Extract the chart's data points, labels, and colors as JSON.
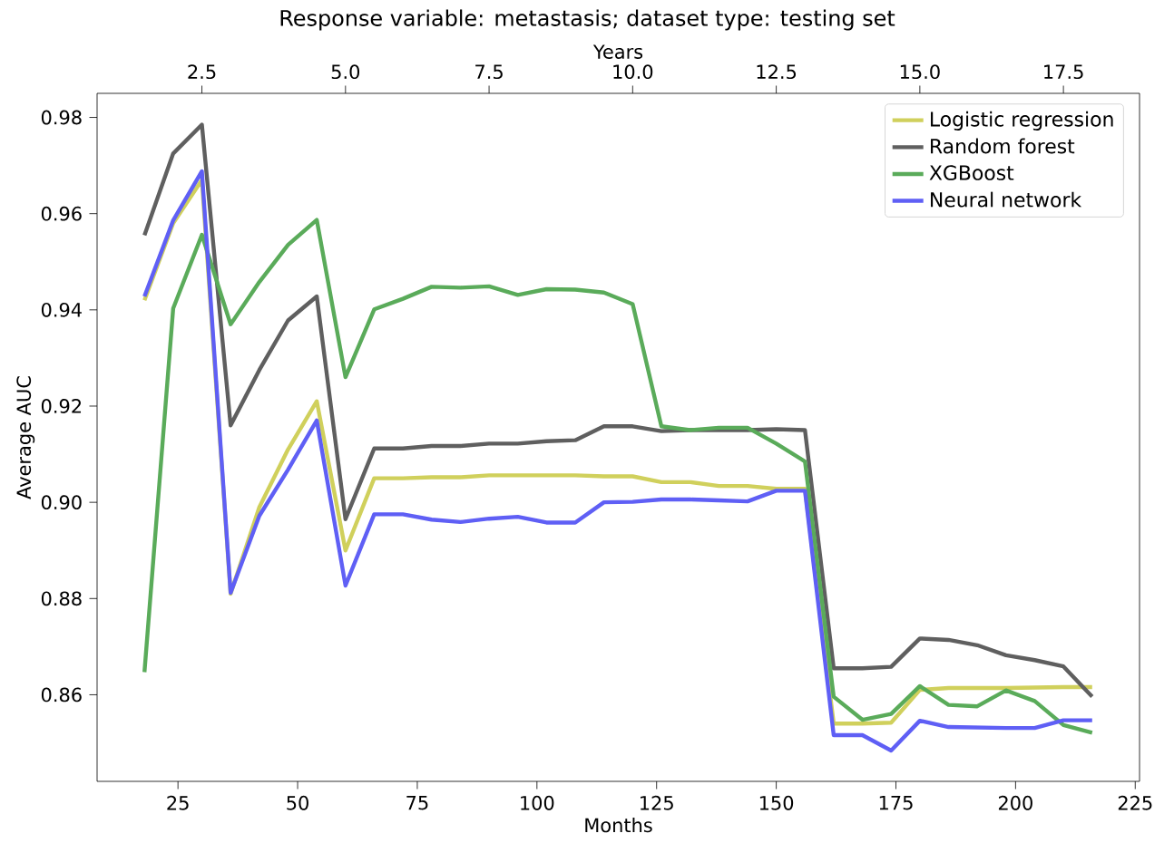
{
  "chart_data": {
    "type": "line",
    "title": "Response variable: metastasis; dataset type: testing set",
    "xlabel": "Months",
    "ylabel": "Average AUC",
    "x2label": "Years",
    "x": [
      18,
      24,
      30,
      36,
      42,
      48,
      54,
      60,
      66,
      72,
      78,
      84,
      90,
      96,
      102,
      108,
      114,
      120,
      126,
      132,
      138,
      144,
      150,
      156,
      162,
      168,
      174,
      180,
      186,
      192,
      198,
      204,
      210,
      216
    ],
    "xlim": [
      8.1,
      225.9
    ],
    "xticks": [
      25,
      50,
      75,
      100,
      125,
      150,
      175,
      200,
      225
    ],
    "x2lim": [
      0.675,
      18.825
    ],
    "x2ticks": [
      {
        "value": 2.5,
        "label": "2.5"
      },
      {
        "value": 5,
        "label": "5.0"
      },
      {
        "value": 7.5,
        "label": "7.5"
      },
      {
        "value": 10,
        "label": "10.0"
      },
      {
        "value": 12.5,
        "label": "12.5"
      },
      {
        "value": 15,
        "label": "15.0"
      },
      {
        "value": 17.5,
        "label": "17.5"
      }
    ],
    "ylim": [
      0.842,
      0.985
    ],
    "yticks": [
      {
        "value": 0.86,
        "label": "0.86"
      },
      {
        "value": 0.88,
        "label": "0.88"
      },
      {
        "value": 0.9,
        "label": "0.90"
      },
      {
        "value": 0.92,
        "label": "0.92"
      },
      {
        "value": 0.94,
        "label": "0.94"
      },
      {
        "value": 0.96,
        "label": "0.96"
      },
      {
        "value": 0.98,
        "label": "0.98"
      }
    ],
    "legend": "top right",
    "line_style": "solid",
    "series": [
      {
        "name": "Logistic regression",
        "color": "#d0d05c",
        "values": [
          0.942,
          0.958,
          0.967,
          0.881,
          0.899,
          0.911,
          0.921,
          0.89,
          0.905,
          0.905,
          0.9052,
          0.9052,
          0.9056,
          0.9056,
          0.9056,
          0.9056,
          0.9054,
          0.9054,
          0.9042,
          0.9042,
          0.9034,
          0.9034,
          0.9028,
          0.9028,
          0.854,
          0.854,
          0.8542,
          0.861,
          0.8614,
          0.8614,
          0.8614,
          0.8615,
          0.8616,
          0.8616
        ]
      },
      {
        "name": "Random forest",
        "color": "#5f5f5f",
        "values": [
          0.9555,
          0.9725,
          0.9785,
          0.916,
          0.9275,
          0.9378,
          0.9428,
          0.8965,
          0.9112,
          0.9112,
          0.9117,
          0.9117,
          0.9122,
          0.9122,
          0.9127,
          0.9129,
          0.9158,
          0.9158,
          0.9148,
          0.915,
          0.915,
          0.915,
          0.9152,
          0.915,
          0.8655,
          0.8655,
          0.8658,
          0.8717,
          0.8714,
          0.8703,
          0.8682,
          0.8672,
          0.8659,
          0.8596
        ]
      },
      {
        "name": "XGBoost",
        "color": "#5aab5a",
        "values": [
          0.8647,
          0.9403,
          0.9556,
          0.937,
          0.9458,
          0.9535,
          0.9587,
          0.926,
          0.9401,
          0.9423,
          0.9448,
          0.9446,
          0.9449,
          0.9431,
          0.9443,
          0.9442,
          0.9436,
          0.9412,
          0.9158,
          0.915,
          0.9155,
          0.9155,
          0.9122,
          0.9085,
          0.8596,
          0.8548,
          0.856,
          0.8618,
          0.8579,
          0.8576,
          0.8609,
          0.8587,
          0.8537,
          0.8521
        ]
      },
      {
        "name": "Neural network",
        "color": "#5f5ff5",
        "values": [
          0.9428,
          0.9586,
          0.9688,
          0.8812,
          0.8972,
          0.9068,
          0.917,
          0.8827,
          0.8975,
          0.8975,
          0.8964,
          0.8959,
          0.8966,
          0.897,
          0.8958,
          0.8958,
          0.9,
          0.9001,
          0.9006,
          0.9006,
          0.9004,
          0.9002,
          0.9024,
          0.9024,
          0.8516,
          0.8516,
          0.8484,
          0.8546,
          0.8533,
          0.8532,
          0.8531,
          0.8531,
          0.8547,
          0.8547
        ]
      }
    ]
  }
}
